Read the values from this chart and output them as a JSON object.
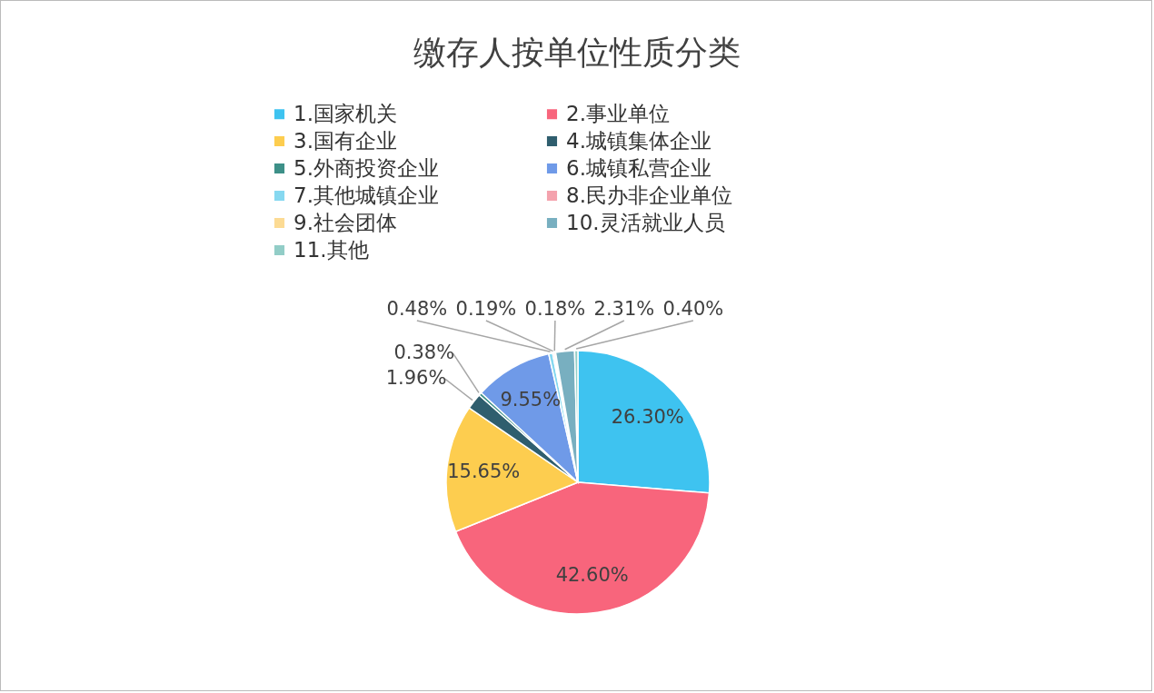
{
  "chart_data": {
    "type": "pie",
    "title": "缴存人按单位性质分类",
    "categories": [
      "1.国家机关",
      "2.事业单位",
      "3.国有企业",
      "4.城镇集体企业",
      "5.外商投资企业",
      "6.城镇私营企业",
      "7.其他城镇企业",
      "8.民办非企业单位",
      "9.社会团体",
      "10.灵活就业人员",
      "11.其他"
    ],
    "values": [
      26.3,
      42.6,
      15.65,
      1.96,
      0.38,
      9.55,
      0.48,
      0.19,
      0.18,
      2.31,
      0.4
    ],
    "value_labels": [
      "26.30%",
      "42.60%",
      "15.65%",
      "1.96%",
      "0.38%",
      "9.55%",
      "0.48%",
      "0.19%",
      "0.18%",
      "2.31%",
      "0.40%"
    ],
    "colors": [
      "#3ec3f0",
      "#f8657c",
      "#fdcd4f",
      "#2f5e6e",
      "#3d9088",
      "#6f9ae8",
      "#86d8f0",
      "#f4a2ad",
      "#fcdb94",
      "#78afc0",
      "#92cdc7"
    ],
    "legend": "top"
  }
}
